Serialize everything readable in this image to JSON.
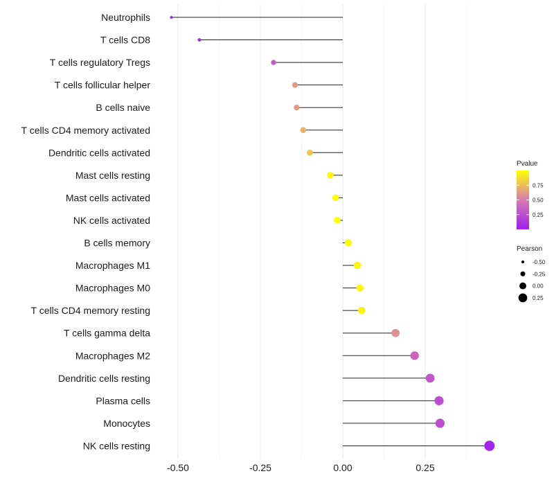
{
  "chart_data": {
    "type": "lollipop",
    "title": "",
    "xlabel": "",
    "ylabel": "",
    "xlim": [
      -0.56,
      0.46
    ],
    "x_ticks": [
      -0.5,
      -0.25,
      0.0,
      0.25
    ],
    "x_tick_labels": [
      "-0.50",
      "-0.25",
      "0.00",
      "0.25"
    ],
    "grid": true,
    "baseline": 0.0,
    "categories": [
      "Neutrophils",
      "T cells CD8",
      "T cells regulatory  Tregs ",
      "T cells follicular helper",
      "B cells naive",
      "T cells CD4 memory activated",
      "Dendritic cells activated",
      "Mast cells resting",
      "Mast cells activated",
      "NK cells activated",
      "B cells memory",
      "Macrophages M1",
      "Macrophages M0",
      "T cells CD4 memory resting",
      "T cells gamma delta",
      "Macrophages M2",
      "Dendritic cells resting",
      "Plasma cells",
      "Monocytes",
      "NK cells resting"
    ],
    "pearson": [
      -0.52,
      -0.435,
      -0.21,
      -0.145,
      -0.14,
      -0.12,
      -0.1,
      -0.038,
      -0.022,
      -0.017,
      0.017,
      0.044,
      0.052,
      0.057,
      0.16,
      0.218,
      0.265,
      0.292,
      0.295,
      0.445
    ],
    "pvalue": [
      0.02,
      0.05,
      0.35,
      0.62,
      0.63,
      0.7,
      0.78,
      0.98,
      0.99,
      0.99,
      0.99,
      0.97,
      0.97,
      0.96,
      0.58,
      0.38,
      0.3,
      0.26,
      0.25,
      0.03
    ],
    "legend": {
      "position": "right",
      "color": {
        "title": "Pvalue",
        "ticks": [
          0.25,
          0.5,
          0.75
        ],
        "tick_labels": [
          "0.25",
          "0.50",
          "0.75"
        ],
        "range": [
          0.0,
          1.0
        ],
        "low_color": "#a020f0",
        "mid_color": "#d67bb0",
        "high_color": "#ffff00"
      },
      "size": {
        "title": "Pearson",
        "values": [
          -0.5,
          -0.25,
          0.0,
          0.25
        ],
        "labels": [
          "-0.50",
          "-0.25",
          "0.00",
          "0.25"
        ]
      }
    }
  }
}
